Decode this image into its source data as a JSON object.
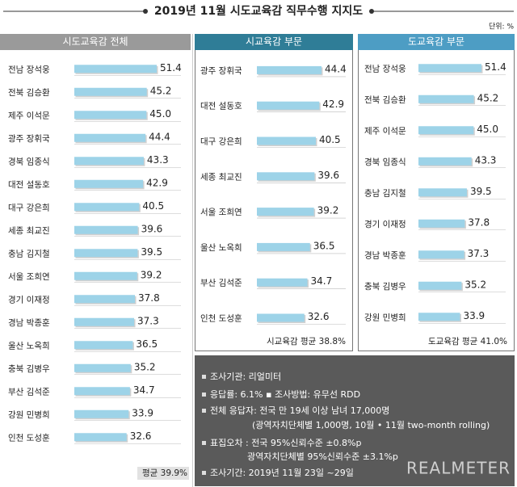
{
  "header": {
    "title": "2019년 11월 시도교육감 직무수행 지지도",
    "unit": "단위: %"
  },
  "chart_data": [
    {
      "type": "bar",
      "orientation": "horizontal",
      "title": "시도교육감 전체",
      "categories": [
        "전남 장석웅",
        "전북 김승환",
        "제주 이석문",
        "광주 장휘국",
        "경북 임종식",
        "대전 설동호",
        "대구 강은희",
        "세종 최교진",
        "충남 김지철",
        "서울 조희연",
        "경기 이재정",
        "경남 박종훈",
        "울산 노옥희",
        "충북 김병우",
        "부산 김석준",
        "강원 민병희",
        "인천 도성훈"
      ],
      "values": [
        51.4,
        45.2,
        45.0,
        44.4,
        43.3,
        42.9,
        40.5,
        39.6,
        39.5,
        39.2,
        37.8,
        37.3,
        36.5,
        35.2,
        34.7,
        33.9,
        32.6
      ],
      "value_labels": [
        "51.4",
        "45.2",
        "45.0",
        "44.4",
        "43.3",
        "42.9",
        "40.5",
        "39.6",
        "39.5",
        "39.2",
        "37.8",
        "37.3",
        "36.5",
        "35.2",
        "34.7",
        "33.9",
        "32.6"
      ],
      "color": "#9dd3e8",
      "header_color": "#9a9a9a",
      "average_label": "평균 39.9%"
    },
    {
      "type": "bar",
      "orientation": "horizontal",
      "title": "시교육감 부문",
      "categories": [
        "광주 장휘국",
        "대전 설동호",
        "대구 강은희",
        "세종 최교진",
        "서울 조희연",
        "울산 노옥희",
        "부산 김석준",
        "인천 도성훈"
      ],
      "values": [
        44.4,
        42.9,
        40.5,
        39.6,
        39.2,
        36.5,
        34.7,
        32.6
      ],
      "color": "#9dd3e8",
      "header_color": "#2f7d97",
      "average_label": "시교육감 평균 38.8%"
    },
    {
      "type": "bar",
      "orientation": "horizontal",
      "title": "도교육감 부문",
      "categories": [
        "전남 장석웅",
        "전북 김승환",
        "제주 이석문",
        "경북 임종식",
        "충남 김지철",
        "경기 이재정",
        "경남 박종훈",
        "충북 김병우",
        "강원 민병희"
      ],
      "values": [
        51.4,
        45.2,
        45.0,
        43.3,
        39.5,
        37.8,
        37.3,
        35.2,
        33.9
      ],
      "value_labels": [
        "51.4",
        "45.2",
        "45.0",
        "43.3",
        "39.5",
        "37.8",
        "37.3",
        "35.2",
        "33.9"
      ],
      "color": "#9dd3e8",
      "header_color": "#4d9dc4",
      "average_label": "도교육감 평균 41.0%"
    }
  ],
  "notes": [
    "조사기관: 리얼미터",
    "응답률: 6.1% ▪ 조사방법: 유무선 RDD",
    "전체 응답자: 전국 만 19세 이상 남녀 17,000명",
    "(광역자치단체별 1,000명, 10월 • 11월 two-month rolling)",
    "표집오차 : 전국 95%신뢰수준 ±0.8%p",
    "광역자치단체별 95%신뢰수준 ±3.1%p",
    "조사기간: 2019년 11월 23일 ~29일"
  ],
  "logo": "REALMETER"
}
